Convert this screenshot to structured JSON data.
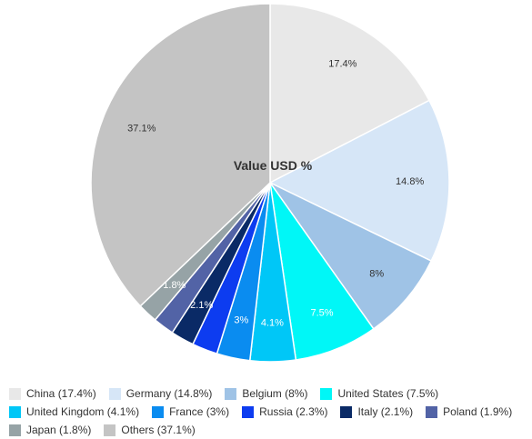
{
  "chart_data": {
    "type": "pie",
    "title": "Value USD %",
    "slices": [
      {
        "label": "China",
        "value": 17.4,
        "display": "17.4%",
        "legend": "China (17.4%)",
        "color": "#e8e8e8"
      },
      {
        "label": "Germany",
        "value": 14.8,
        "display": "14.8%",
        "legend": "Germany (14.8%)",
        "color": "#d6e6f7"
      },
      {
        "label": "Belgium",
        "value": 8,
        "display": "8%",
        "legend": "Belgium (8%)",
        "color": "#9fc3e6"
      },
      {
        "label": "United States",
        "value": 7.5,
        "display": "7.5%",
        "legend": "United States (7.5%)",
        "color": "#00f7f7"
      },
      {
        "label": "United Kingdom",
        "value": 4.1,
        "display": "4.1%",
        "legend": "United Kingdom (4.1%)",
        "color": "#00c7f7"
      },
      {
        "label": "France",
        "value": 3,
        "display": "3%",
        "legend": "France (3%)",
        "color": "#0a8cf0"
      },
      {
        "label": "Russia",
        "value": 2.3,
        "display": "2.3%",
        "legend": "Russia (2.3%)",
        "color": "#0d3cf0"
      },
      {
        "label": "Italy",
        "value": 2.1,
        "display": "2.1%",
        "legend": "Italy (2.1%)",
        "color": "#0a2a66"
      },
      {
        "label": "Poland",
        "value": 1.9,
        "display": "1.9%",
        "legend": "Poland (1.9%)",
        "color": "#5263a6"
      },
      {
        "label": "Japan",
        "value": 1.8,
        "display": "1.8%",
        "legend": "Japan (1.8%)",
        "color": "#96a3a6"
      },
      {
        "label": "Others",
        "value": 37.1,
        "display": "37.1%",
        "legend": "Others (37.1%)",
        "color": "#c4c4c4"
      }
    ],
    "label_light_for": [
      "United States",
      "United Kingdom",
      "France",
      "Italy",
      "Poland",
      "Japan"
    ],
    "label_hidden_for": [
      "Russia",
      "Poland"
    ],
    "legend_position": "bottom"
  }
}
